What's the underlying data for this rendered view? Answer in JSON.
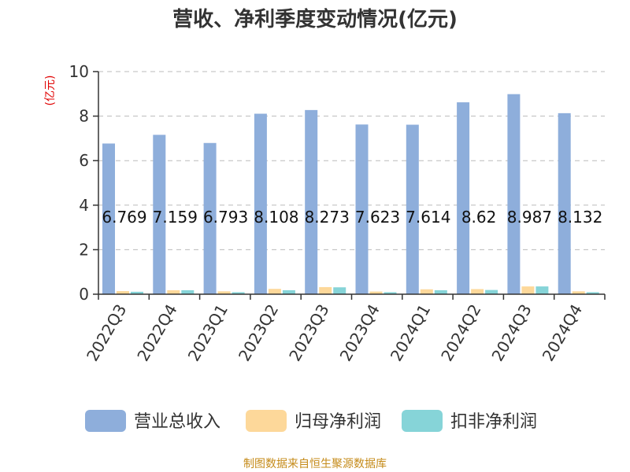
{
  "chart_data": {
    "type": "bar",
    "title": "营收、净利季度变动情况(亿元)",
    "ylabel": "(亿元)",
    "ylim": [
      0,
      10
    ],
    "yticks": [
      0,
      2,
      4,
      6,
      8,
      10
    ],
    "grid": true,
    "legend_position": "bottom",
    "categories": [
      "2022Q3",
      "2022Q4",
      "2023Q1",
      "2023Q2",
      "2023Q3",
      "2023Q4",
      "2024Q1",
      "2024Q2",
      "2024Q3",
      "2024Q4"
    ],
    "series": [
      {
        "name": "营业总收入",
        "color": "#8eaedb",
        "values": [
          6.769,
          7.159,
          6.793,
          8.108,
          8.273,
          7.623,
          7.614,
          8.62,
          8.987,
          8.132
        ],
        "labels": [
          "6.769",
          "7.159",
          "6.793",
          "8.108",
          "8.273",
          "7.623",
          "7.614",
          "8.62",
          "8.987",
          "8.132"
        ]
      },
      {
        "name": "归母净利润",
        "color": "#fdd89a",
        "values": [
          0.14,
          0.18,
          0.13,
          0.24,
          0.32,
          0.12,
          0.22,
          0.23,
          0.35,
          0.13
        ]
      },
      {
        "name": "扣非净利润",
        "color": "#86d4d8",
        "values": [
          0.11,
          0.18,
          0.09,
          0.18,
          0.31,
          0.09,
          0.18,
          0.19,
          0.35,
          0.09
        ]
      }
    ],
    "source": "制图数据来自恒生聚源数据库"
  }
}
